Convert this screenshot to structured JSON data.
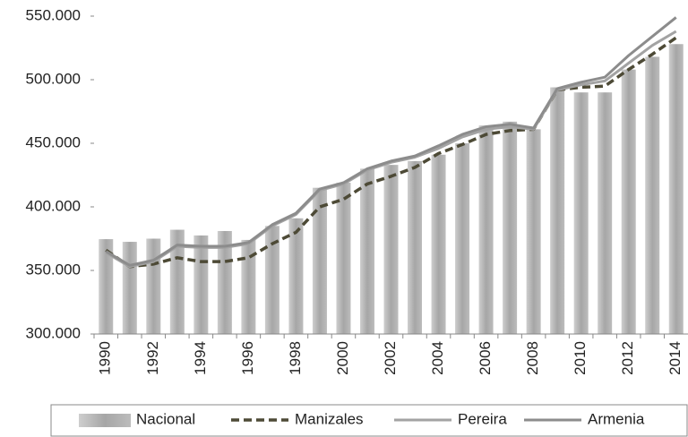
{
  "chart_data": {
    "type": "bar",
    "categories": [
      1990,
      null,
      1992,
      null,
      1994,
      null,
      1996,
      null,
      1998,
      null,
      2000,
      null,
      2002,
      null,
      2004,
      null,
      2006,
      null,
      2008,
      null,
      2010,
      null,
      2012,
      null,
      2014
    ],
    "series": [
      {
        "name": "Nacional",
        "type": "bar",
        "color": "#a6a6a6",
        "values": [
          374600,
          372500,
          375000,
          382000,
          377500,
          381000,
          374000,
          385000,
          391000,
          415000,
          419000,
          430000,
          433000,
          436000,
          441000,
          450000,
          464000,
          467000,
          461000,
          494000,
          490000,
          490000,
          508000,
          518000,
          528000
        ]
      },
      {
        "name": "Manizales",
        "type": "line",
        "line_style": "dashed",
        "color": "#4d4a36",
        "values": [
          366000,
          353000,
          355000,
          360000,
          357000,
          357000,
          360000,
          371000,
          380000,
          400000,
          406000,
          418000,
          424000,
          431000,
          442000,
          449000,
          457000,
          460000,
          461000,
          492000,
          494000,
          495000,
          508000,
          520000,
          533000
        ]
      },
      {
        "name": "Pereira",
        "type": "line",
        "line_style": "solid",
        "color": "#a3a3a3",
        "values": [
          364000,
          353000,
          357000,
          369000,
          368000,
          368000,
          371000,
          385000,
          394000,
          413000,
          418000,
          429000,
          435000,
          439000,
          446000,
          455000,
          461000,
          463000,
          461000,
          492000,
          496000,
          499000,
          513000,
          527000,
          538000
        ]
      },
      {
        "name": "Armenia",
        "type": "line",
        "line_style": "solid",
        "color": "#8c8c8c",
        "values": [
          365000,
          354000,
          358000,
          370000,
          369000,
          369000,
          372000,
          386000,
          395000,
          414000,
          419000,
          430000,
          436000,
          440000,
          448000,
          457000,
          463000,
          465000,
          462000,
          493000,
          498000,
          502000,
          519000,
          534000,
          549000
        ]
      }
    ],
    "ylim": [
      300000,
      550000
    ],
    "yticks": [
      {
        "value": 300000,
        "label": "300.000"
      },
      {
        "value": 350000,
        "label": "350.000"
      },
      {
        "value": 400000,
        "label": "400.000"
      },
      {
        "value": 450000,
        "label": "450.000"
      },
      {
        "value": 500000,
        "label": "500.000"
      },
      {
        "value": 550000,
        "label": "550.000"
      }
    ],
    "legend": "bottom"
  }
}
